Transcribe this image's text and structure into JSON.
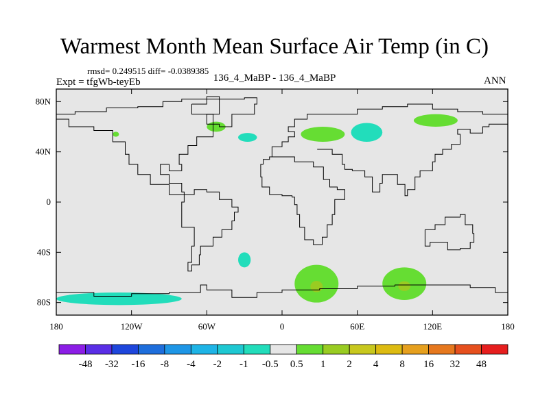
{
  "title": "Warmest Month Mean Surface Air Temp (in C)",
  "stats": "rmsd= 0.249515 diff= -0.0389385",
  "experiment": "Expt = tfgWb-teyEb",
  "center_label": "136_4_MaBP - 136_4_MaBP",
  "season": "ANN",
  "colors": {
    "background_field": "#e6e6e6",
    "coastline": "#000000",
    "small_positive": "#66dd33",
    "mid_positive": "#99cc22",
    "small_negative": "#22ddbb",
    "mid_negative": "#33cccc"
  },
  "chart_data": {
    "type": "contour_map",
    "variable": "Warmest Month Mean Surface Air Temp difference",
    "units": "C",
    "x_axis": {
      "range": [
        -180,
        180
      ],
      "ticks": [
        -180,
        -120,
        -60,
        0,
        60,
        120,
        180
      ],
      "tick_labels": [
        "180",
        "120W",
        "60W",
        "0",
        "60E",
        "120E",
        "180"
      ]
    },
    "y_axis": {
      "range": [
        -90,
        90
      ],
      "ticks": [
        80,
        40,
        0,
        -40,
        -80
      ],
      "tick_labels": [
        "80N",
        "40N",
        "0",
        "40S",
        "80S"
      ]
    },
    "colorbar": {
      "levels": [
        "-48",
        "-32",
        "-16",
        "-8",
        "-4",
        "-2",
        "-1",
        "-0.5",
        "0.5",
        "1",
        "2",
        "4",
        "8",
        "16",
        "32",
        "48"
      ],
      "colors": [
        "#8c1ee6",
        "#5a2ee6",
        "#1e46dc",
        "#1e6edc",
        "#1e96e6",
        "#1eb4e6",
        "#1ec8d2",
        "#22ddbb",
        "#e6e6e6",
        "#66dd33",
        "#99cc22",
        "#c8c81e",
        "#ddbb11",
        "#e6a01e",
        "#e6781e",
        "#e6501e",
        "#e61e1e"
      ]
    },
    "anomaly_regions": [
      {
        "name": "alaska",
        "sign": "+",
        "level": "0.5-1",
        "lon": [
          -135,
          -130
        ],
        "lat": [
          52,
          56
        ]
      },
      {
        "name": "southern-greenland",
        "sign": "-",
        "level": "-0.5--1",
        "lon": [
          -35,
          -20
        ],
        "lat": [
          48,
          55
        ]
      },
      {
        "name": "northern-greenland",
        "sign": "+",
        "level": "0.5-1",
        "lon": [
          -60,
          -45
        ],
        "lat": [
          56,
          64
        ]
      },
      {
        "name": "western-europe",
        "sign": "+",
        "level": "0.5-1",
        "lon": [
          15,
          50
        ],
        "lat": [
          48,
          60
        ]
      },
      {
        "name": "scandinavia",
        "sign": "-",
        "level": "-0.5--1",
        "lon": [
          55,
          80
        ],
        "lat": [
          48,
          63
        ]
      },
      {
        "name": "siberia",
        "sign": "+",
        "level": "0.5-1",
        "lon": [
          105,
          140
        ],
        "lat": [
          60,
          70
        ]
      },
      {
        "name": "southern-africa",
        "sign": "+",
        "level": "0.5-2",
        "lon": [
          10,
          45
        ],
        "lat": [
          -80,
          -50
        ]
      },
      {
        "name": "antarctic-east",
        "sign": "+",
        "level": "0.5-2",
        "lon": [
          80,
          115
        ],
        "lat": [
          -78,
          -52
        ]
      },
      {
        "name": "patagonia",
        "sign": "-",
        "level": "-0.5--1",
        "lon": [
          -35,
          -25
        ],
        "lat": [
          -52,
          -40
        ]
      },
      {
        "name": "antarctic-coast",
        "sign": "-",
        "level": "-0.5--1",
        "lon": [
          -180,
          -80
        ],
        "lat": [
          -82,
          -72
        ]
      }
    ]
  }
}
